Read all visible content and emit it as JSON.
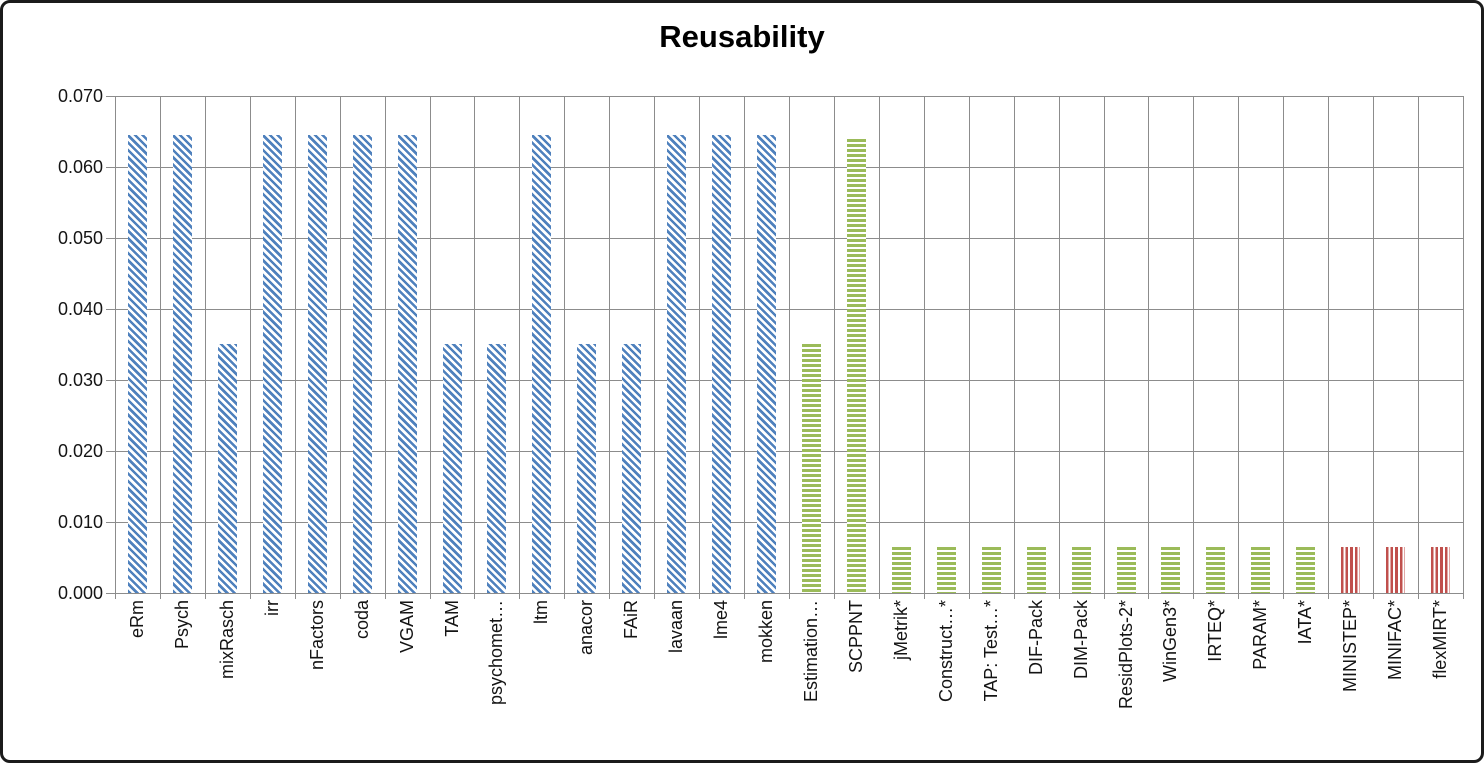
{
  "chart_data": {
    "type": "bar",
    "title": "Reusability",
    "xlabel": "",
    "ylabel": "",
    "ylim": [
      0,
      0.07
    ],
    "ytick_interval": 0.01,
    "grid": true,
    "legend_position": "none",
    "yticks": [
      {
        "value": 0.0,
        "label": "0.000"
      },
      {
        "value": 0.01,
        "label": "0.010"
      },
      {
        "value": 0.02,
        "label": "0.020"
      },
      {
        "value": 0.03,
        "label": "0.030"
      },
      {
        "value": 0.04,
        "label": "0.040"
      },
      {
        "value": 0.05,
        "label": "0.050"
      },
      {
        "value": 0.06,
        "label": "0.060"
      },
      {
        "value": 0.07,
        "label": "0.070"
      }
    ],
    "bar_groups": {
      "blue": {
        "color": "#4F81BD",
        "pattern": "diagonal-stripes"
      },
      "green": {
        "color": "#9BBB59",
        "pattern": "horizontal-stripes"
      },
      "red": {
        "color": "#C0504D",
        "pattern": "vertical-stripes"
      }
    },
    "bars": [
      {
        "label": "eRm",
        "value": 0.0645,
        "group": "blue"
      },
      {
        "label": "Psych",
        "value": 0.0645,
        "group": "blue"
      },
      {
        "label": "mixRasch",
        "value": 0.035,
        "group": "blue"
      },
      {
        "label": "irr",
        "value": 0.0645,
        "group": "blue"
      },
      {
        "label": "nFactors",
        "value": 0.0645,
        "group": "blue"
      },
      {
        "label": "coda",
        "value": 0.0645,
        "group": "blue"
      },
      {
        "label": "VGAM",
        "value": 0.0645,
        "group": "blue"
      },
      {
        "label": "TAM",
        "value": 0.035,
        "group": "blue"
      },
      {
        "label": "psychomet…",
        "value": 0.035,
        "group": "blue"
      },
      {
        "label": "ltm",
        "value": 0.0645,
        "group": "blue"
      },
      {
        "label": "anacor",
        "value": 0.035,
        "group": "blue"
      },
      {
        "label": "FAiR",
        "value": 0.035,
        "group": "blue"
      },
      {
        "label": "lavaan",
        "value": 0.0645,
        "group": "blue"
      },
      {
        "label": "lme4",
        "value": 0.0645,
        "group": "blue"
      },
      {
        "label": "mokken",
        "value": 0.0645,
        "group": "blue"
      },
      {
        "label": "Estimation…",
        "value": 0.035,
        "group": "green"
      },
      {
        "label": "SCPPNT",
        "value": 0.064,
        "group": "green"
      },
      {
        "label": "jMetrik*",
        "value": 0.0065,
        "group": "green"
      },
      {
        "label": "Construct…*",
        "value": 0.0065,
        "group": "green"
      },
      {
        "label": "TAP: Test…*",
        "value": 0.0065,
        "group": "green"
      },
      {
        "label": "DIF-Pack",
        "value": 0.0065,
        "group": "green"
      },
      {
        "label": "DIM-Pack",
        "value": 0.0065,
        "group": "green"
      },
      {
        "label": "ResidPlots-2*",
        "value": 0.0065,
        "group": "green"
      },
      {
        "label": "WinGen3*",
        "value": 0.0065,
        "group": "green"
      },
      {
        "label": "IRTEQ*",
        "value": 0.0065,
        "group": "green"
      },
      {
        "label": "PARAM*",
        "value": 0.0065,
        "group": "green"
      },
      {
        "label": "IATA*",
        "value": 0.0065,
        "group": "green"
      },
      {
        "label": "MINISTEP*",
        "value": 0.0065,
        "group": "red"
      },
      {
        "label": "MINIFAC*",
        "value": 0.0065,
        "group": "red"
      },
      {
        "label": "flexMIRT*",
        "value": 0.0065,
        "group": "red"
      }
    ]
  }
}
